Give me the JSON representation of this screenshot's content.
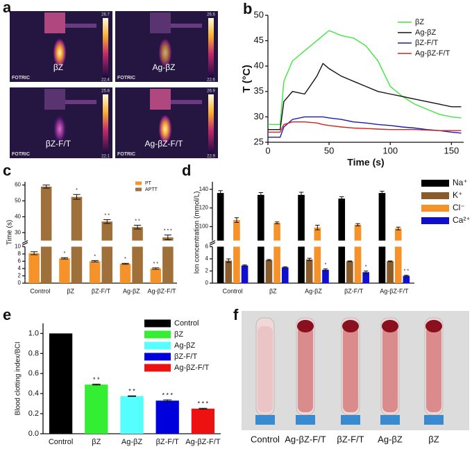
{
  "panel_a": {
    "letter": "a",
    "images": [
      {
        "label": "βZ",
        "brand": "FOTRIC",
        "scale_max": 26.7,
        "scale_min": 22.4
      },
      {
        "label": "Ag-βZ",
        "brand": "FOTRIC",
        "scale_max": 26.6,
        "scale_min": 22.6
      },
      {
        "label": "βZ-F/T",
        "brand": "FOTRIC",
        "scale_max": 25.8,
        "scale_min": 22.1
      },
      {
        "label": "Ag-βZ-F/T",
        "brand": "FOTRIC",
        "scale_max": 26.9,
        "scale_min": 22.9
      }
    ]
  },
  "panel_f": {
    "letter": "f",
    "labels": [
      "Control",
      "Ag-βZ-F/T",
      "βZ-F/T",
      "Ag-βZ",
      "βZ"
    ]
  },
  "chart_data": [
    {
      "panel": "b",
      "type": "line",
      "xlabel": "Time  (s)",
      "ylabel": "T (°C)",
      "x": [
        0,
        10,
        13,
        20,
        30,
        40,
        45,
        50,
        60,
        70,
        80,
        90,
        100,
        110,
        120,
        130,
        140,
        150,
        158
      ],
      "xlim": [
        0,
        160
      ],
      "xticks": [
        0,
        50,
        100,
        150
      ],
      "ylim": [
        25,
        50
      ],
      "yticks": [
        25,
        30,
        35,
        40,
        45,
        50
      ],
      "legend": "upper right",
      "series": [
        {
          "name": "βZ",
          "color": "#3ee63e",
          "values": [
            28.5,
            28.5,
            37,
            41,
            43,
            45,
            46,
            47,
            46,
            45.5,
            44,
            41,
            36,
            34,
            32.5,
            31.5,
            30.5,
            30,
            29.8
          ]
        },
        {
          "name": "Ag-βZ",
          "color": "#111111",
          "values": [
            27.5,
            27.5,
            33,
            35,
            34.5,
            38,
            40.5,
            39.5,
            38,
            37,
            36,
            35,
            34.5,
            34,
            33.5,
            33,
            32.5,
            32,
            32
          ]
        },
        {
          "name": "βZ-F/T",
          "color": "#1a1aa8",
          "values": [
            26,
            26,
            28,
            29.5,
            30,
            30,
            30,
            29.8,
            29.5,
            29,
            28.8,
            28.5,
            28.3,
            28,
            27.8,
            27.5,
            27.3,
            27,
            26.8
          ]
        },
        {
          "name": "Ag-βZ-F/T",
          "color": "#d62020",
          "values": [
            27,
            27,
            28.5,
            29,
            29,
            28.8,
            28.5,
            28.3,
            28,
            27.8,
            27.7,
            27.6,
            27.5,
            27.5,
            27.5,
            27.4,
            27.3,
            27.3,
            27.3
          ]
        }
      ]
    },
    {
      "panel": "c",
      "type": "bar",
      "ylabel": "Time (s)",
      "categories": [
        "Control",
        "βZ",
        "βZ-F/T",
        "Ag-βZ",
        "Ag-βZ-F/T"
      ],
      "ylim": [
        0,
        10
      ],
      "yticks": [
        0,
        2,
        4,
        6,
        8,
        10
      ],
      "ylim_upper": [
        25,
        62
      ],
      "yticks_upper": [
        30,
        40,
        50,
        60
      ],
      "legend": "upper right",
      "series": [
        {
          "name": "PT",
          "color": "#f5932a",
          "values": [
            8.2,
            6.8,
            6.0,
            5.3,
            4.0
          ],
          "errors": [
            0.4,
            0.2,
            0.2,
            0.15,
            0.2
          ],
          "significance": [
            null,
            "*",
            "*",
            "*",
            "* *"
          ]
        },
        {
          "name": "APTT",
          "color": "#a0703a",
          "values": [
            59,
            52.5,
            37,
            33.5,
            27
          ],
          "errors": [
            1,
            1.5,
            1.2,
            1.2,
            1.5
          ],
          "significance": [
            null,
            "*",
            "* *",
            "* *",
            "* * *"
          ]
        }
      ]
    },
    {
      "panel": "d",
      "type": "bar",
      "ylabel": "Ion concentration (mmol/L)",
      "categories": [
        "Control",
        "βZ",
        "Ag-βZ",
        "βZ-F/T",
        "Ag-βZ-F/T"
      ],
      "ylim": [
        0,
        6
      ],
      "yticks": [
        0,
        2,
        4,
        6
      ],
      "ylim_upper": [
        85,
        148
      ],
      "yticks_upper": [
        100,
        120,
        140
      ],
      "legend": "outside right",
      "series": [
        {
          "name": "Na⁺",
          "color": "#000000",
          "values": [
            136,
            134,
            134,
            130,
            136
          ],
          "errors": [
            2.5,
            2.5,
            2.8,
            2,
            2
          ]
        },
        {
          "name": "K⁺",
          "color": "#8b5a2b",
          "values": [
            3.7,
            3.8,
            3.9,
            3.6,
            3.6
          ],
          "errors": [
            0.3,
            0.1,
            0.2,
            0.05,
            0.05
          ]
        },
        {
          "name": "Cl⁻",
          "color": "#f5932a",
          "values": [
            107,
            104,
            99,
            102,
            98
          ],
          "errors": [
            2.5,
            1,
            2.5,
            1.2,
            1.5
          ]
        },
        {
          "name": "Ca²⁺",
          "color": "#1010cc",
          "values": [
            2.9,
            2.6,
            2.2,
            1.8,
            1.2
          ],
          "errors": [
            0.1,
            0.1,
            0.15,
            0.2,
            0.1
          ],
          "significance": [
            null,
            null,
            "*",
            "*",
            "* *"
          ]
        }
      ]
    },
    {
      "panel": "e",
      "type": "bar",
      "ylabel": "Blood clotting index/BCI",
      "categories": [
        "Control",
        "βZ",
        "Ag-βZ",
        "βZ-F/T",
        "Ag-βZ-F/T"
      ],
      "values": [
        1.0,
        0.49,
        0.375,
        0.33,
        0.25
      ],
      "errors": [
        null,
        0.005,
        0.003,
        0.008,
        0.004
      ],
      "significance": [
        null,
        "* *",
        "* *",
        "* * *",
        "* * *"
      ],
      "colors": [
        "#000000",
        "#33ee33",
        "#55ffff",
        "#0000dd",
        "#ee1111"
      ],
      "legend": "upper right",
      "ylim": [
        0,
        1.1
      ],
      "yticks": [
        {
          "value": 0,
          "label": "0.0"
        },
        {
          "value": 0.2,
          "label": "0.2"
        },
        {
          "value": 0.4,
          "label": "0.4"
        },
        {
          "value": 0.6,
          "label": "0.6"
        },
        {
          "value": 0.8,
          "label": "0.8"
        },
        {
          "value": 1,
          "label": "1.0"
        }
      ]
    }
  ]
}
